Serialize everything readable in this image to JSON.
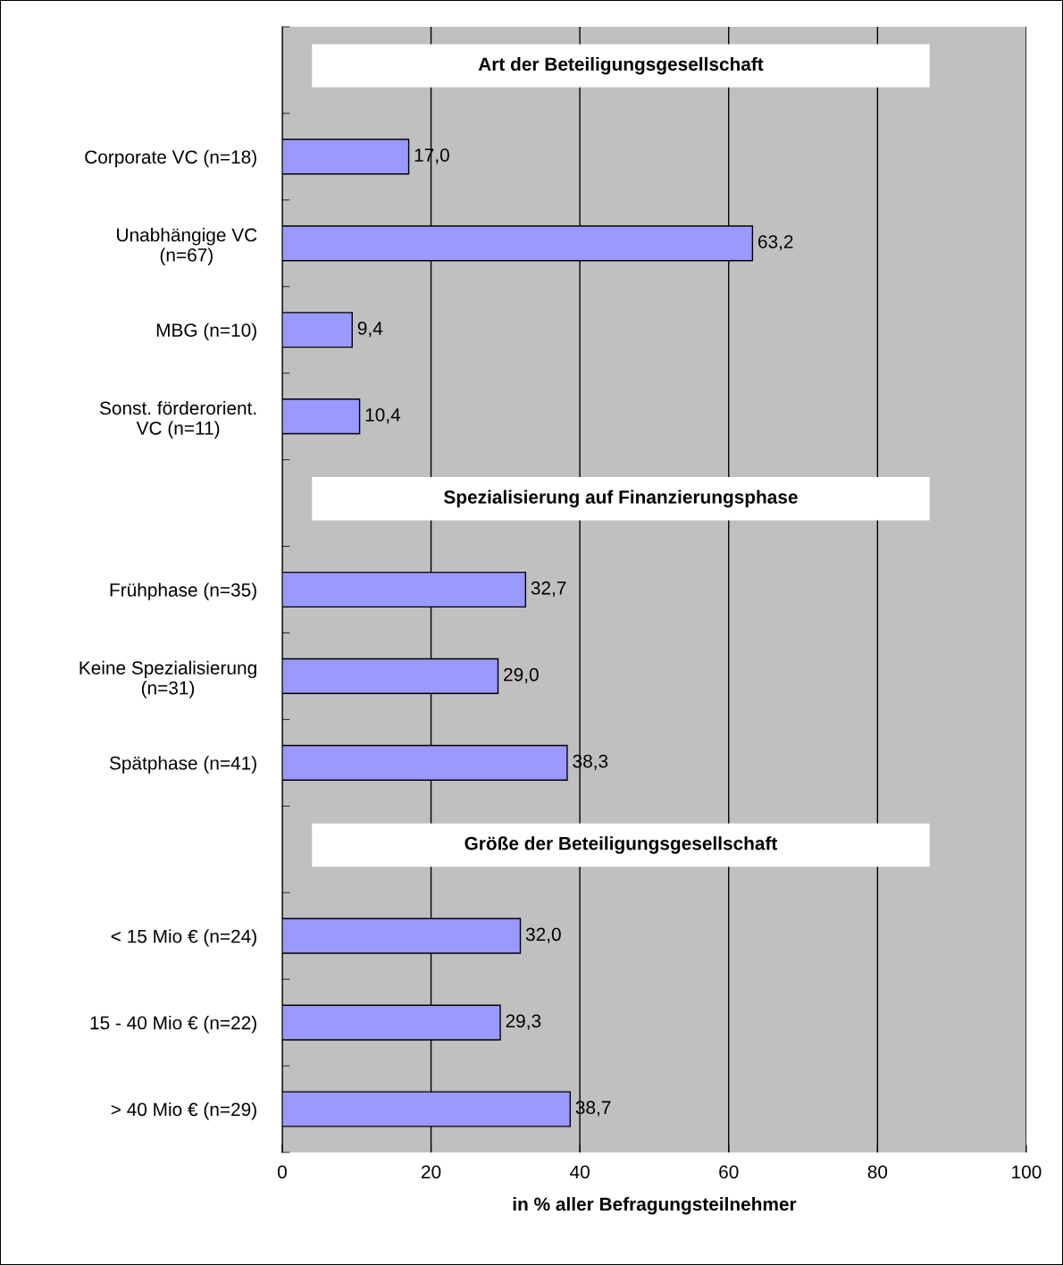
{
  "chart_data": {
    "type": "bar",
    "orientation": "horizontal",
    "categories": [
      null,
      "Corporate VC (n=18)",
      "Unabhängige VC\n(n=67)",
      "MBG (n=10)",
      "Sonst. förderorient.\nVC (n=11)",
      null,
      "Frühphase (n=35)",
      "Keine Spezialisierung\n(n=31)",
      "Spätphase (n=41)",
      null,
      "< 15 Mio € (n=24)",
      "15 - 40 Mio € (n=22)",
      "> 40 Mio € (n=29)"
    ],
    "values": [
      null,
      17.0,
      63.2,
      9.4,
      10.4,
      null,
      32.7,
      29.0,
      38.3,
      null,
      32.0,
      29.3,
      38.7
    ],
    "value_labels": [
      null,
      "17,0",
      "63,2",
      "9,4",
      "10,4",
      null,
      "32,7",
      "29,0",
      "38,3",
      null,
      "32,0",
      "29,3",
      "38,7"
    ],
    "color": "#9999ff",
    "xlabel": "in % aller Befragungsteilnehmer",
    "xlim": [
      0,
      100
    ],
    "xticks": [
      0,
      20,
      40,
      60,
      80,
      100
    ],
    "grid": "x",
    "annotations": [
      "Art der Beteiligungsgesellschaft",
      "Spezialisierung auf Finanzierungsphase",
      "Größe der Beteiligungsgesellschaft"
    ]
  }
}
